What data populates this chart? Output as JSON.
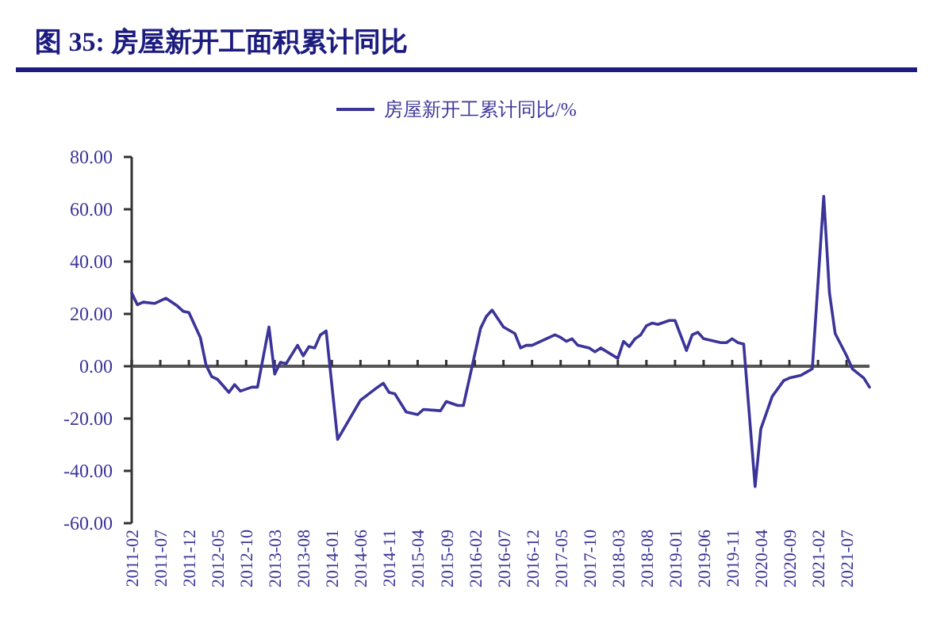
{
  "chart_data": {
    "type": "line",
    "title": "图  35:  房屋新开工面积累计同比",
    "legend": "top",
    "marker": "none",
    "line_style": "solid",
    "xlim": [
      "2011-02",
      "2021-11"
    ],
    "xticks": [
      "2011-02",
      "2011-07",
      "2011-12",
      "2012-05",
      "2012-10",
      "2013-03",
      "2013-08",
      "2014-01",
      "2014-06",
      "2014-11",
      "2015-04",
      "2015-09",
      "2016-02",
      "2016-07",
      "2016-12",
      "2017-05",
      "2017-10",
      "2018-03",
      "2018-08",
      "2019-01",
      "2019-06",
      "2019-11",
      "2020-04",
      "2020-09",
      "2021-02",
      "2021-07"
    ],
    "ylim": [
      -60,
      80
    ],
    "yticks": [
      {
        "value": 80,
        "label": "80.00"
      },
      {
        "value": 60,
        "label": "60.00"
      },
      {
        "value": 40,
        "label": "40.00"
      },
      {
        "value": 20,
        "label": "20.00"
      },
      {
        "value": 0,
        "label": "0.00"
      },
      {
        "value": -20,
        "label": "-20.00"
      },
      {
        "value": -40,
        "label": "-40.00"
      },
      {
        "value": -60,
        "label": "-60.00"
      }
    ],
    "series": [
      {
        "name": "房屋新开工累计同比/%",
        "color": "#3b3499",
        "x": [
          "2011-02",
          "2011-03",
          "2011-04",
          "2011-06",
          "2011-08",
          "2011-10",
          "2011-11",
          "2011-12",
          "2012-02",
          "2012-03",
          "2012-04",
          "2012-05",
          "2012-07",
          "2012-08",
          "2012-09",
          "2012-11",
          "2012-12",
          "2013-02",
          "2013-03",
          "2013-04",
          "2013-05",
          "2013-07",
          "2013-08",
          "2013-09",
          "2013-10",
          "2013-11",
          "2013-12",
          "2014-02",
          "2014-06",
          "2014-09",
          "2014-10",
          "2014-11",
          "2014-12",
          "2015-02",
          "2015-04",
          "2015-05",
          "2015-08",
          "2015-09",
          "2015-11",
          "2015-12",
          "2016-03",
          "2016-04",
          "2016-05",
          "2016-07",
          "2016-09",
          "2016-10",
          "2016-11",
          "2016-12",
          "2017-04",
          "2017-05",
          "2017-06",
          "2017-07",
          "2017-08",
          "2017-10",
          "2017-11",
          "2017-12",
          "2018-03",
          "2018-04",
          "2018-05",
          "2018-06",
          "2018-07",
          "2018-08",
          "2018-09",
          "2018-10",
          "2018-12",
          "2019-01",
          "2019-03",
          "2019-04",
          "2019-05",
          "2019-06",
          "2019-09",
          "2019-10",
          "2019-11",
          "2019-12",
          "2020-01",
          "2020-03",
          "2020-04",
          "2020-06",
          "2020-08",
          "2020-09",
          "2020-11",
          "2021-01",
          "2021-03",
          "2021-04",
          "2021-05",
          "2021-07",
          "2021-08",
          "2021-10",
          "2021-11"
        ],
        "values": [
          28,
          23.5,
          24.5,
          24,
          26,
          23,
          21,
          20.5,
          11,
          0.5,
          -4,
          -5,
          -10,
          -7,
          -9.5,
          -8,
          -8,
          15,
          -3,
          1.5,
          1,
          8,
          4,
          7.5,
          7,
          12,
          13.5,
          -28,
          -13,
          -8,
          -6.5,
          -10,
          -10.5,
          -17.5,
          -18.5,
          -16.5,
          -17,
          -13.5,
          -15,
          -15,
          14.5,
          19,
          21.5,
          15,
          12.5,
          7,
          8,
          8,
          12,
          11,
          9.5,
          10.5,
          8,
          7,
          5.5,
          7,
          3,
          9.5,
          7.5,
          10.5,
          12,
          15.5,
          16.5,
          16,
          17.5,
          17.5,
          6,
          12,
          13,
          10.5,
          9,
          9,
          10.5,
          9,
          8.5,
          -46,
          -24,
          -11.5,
          -5.5,
          -4.5,
          -3.5,
          -1,
          65,
          28,
          12.5,
          4,
          -1,
          -4.5,
          -8
        ]
      }
    ]
  }
}
